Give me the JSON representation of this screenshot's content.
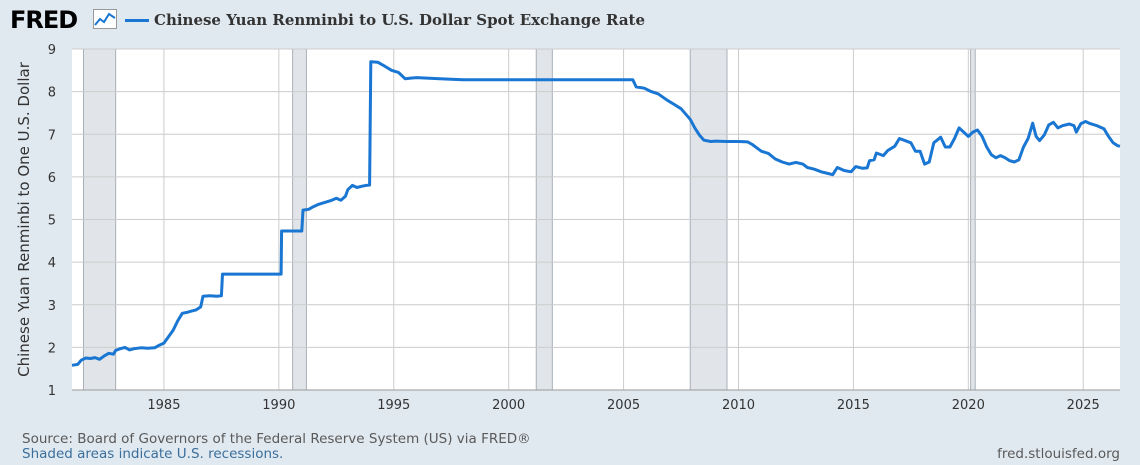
{
  "logo": {
    "text": "FRED",
    "icon": "line-chart-icon"
  },
  "colors": {
    "series": "#1976d2",
    "recession": "#e1e5e9",
    "plot_bg": "#ffffff",
    "page_bg": "#e1e9f0",
    "grid": "#cccccc"
  },
  "footer": {
    "source": "Source: Board of Governors of the Federal Reserve System (US) via FRED®",
    "note": "Shaded areas indicate U.S. recessions.",
    "url": "fred.stlouisfed.org"
  },
  "chart_data": {
    "type": "line",
    "title": "",
    "xlabel": "",
    "ylabel": "Chinese Yuan Renminbi to One U.S. Dollar",
    "xlim": [
      1981.0,
      2026.6
    ],
    "ylim": [
      1,
      9
    ],
    "x_ticks": [
      "1985",
      "1990",
      "1995",
      "2000",
      "2005",
      "2010",
      "2015",
      "2020",
      "2025"
    ],
    "y_ticks": [
      "1",
      "2",
      "3",
      "4",
      "5",
      "6",
      "7",
      "8",
      "9"
    ],
    "grid": true,
    "legend": "top-left",
    "recessions": [
      [
        1981.5,
        1982.9
      ],
      [
        1990.6,
        1991.2
      ],
      [
        2001.2,
        2001.9
      ],
      [
        2007.9,
        2009.5
      ],
      [
        2020.1,
        2020.3
      ]
    ],
    "series": [
      {
        "name": "Chinese Yuan Renminbi to U.S. Dollar Spot Exchange Rate",
        "points": [
          [
            1981.0,
            1.58
          ],
          [
            1981.25,
            1.6
          ],
          [
            1981.4,
            1.7
          ],
          [
            1981.6,
            1.75
          ],
          [
            1981.8,
            1.74
          ],
          [
            1982.0,
            1.76
          ],
          [
            1982.2,
            1.72
          ],
          [
            1982.4,
            1.8
          ],
          [
            1982.6,
            1.86
          ],
          [
            1982.8,
            1.84
          ],
          [
            1982.9,
            1.93
          ],
          [
            1983.1,
            1.97
          ],
          [
            1983.3,
            2.0
          ],
          [
            1983.5,
            1.94
          ],
          [
            1983.7,
            1.97
          ],
          [
            1984.0,
            1.99
          ],
          [
            1984.3,
            1.98
          ],
          [
            1984.6,
            1.99
          ],
          [
            1984.8,
            2.05
          ],
          [
            1985.0,
            2.1
          ],
          [
            1985.2,
            2.25
          ],
          [
            1985.4,
            2.4
          ],
          [
            1985.6,
            2.62
          ],
          [
            1985.8,
            2.8
          ],
          [
            1986.0,
            2.82
          ],
          [
            1986.2,
            2.85
          ],
          [
            1986.4,
            2.88
          ],
          [
            1986.6,
            2.95
          ],
          [
            1986.7,
            3.2
          ],
          [
            1987.0,
            3.21
          ],
          [
            1987.3,
            3.2
          ],
          [
            1987.5,
            3.21
          ],
          [
            1987.55,
            3.72
          ],
          [
            1987.8,
            3.72
          ],
          [
            1988.5,
            3.72
          ],
          [
            1989.5,
            3.72
          ],
          [
            1990.0,
            3.72
          ],
          [
            1990.1,
            3.72
          ],
          [
            1990.12,
            4.73
          ],
          [
            1990.5,
            4.73
          ],
          [
            1990.9,
            4.73
          ],
          [
            1991.0,
            4.73
          ],
          [
            1991.05,
            5.22
          ],
          [
            1991.3,
            5.24
          ],
          [
            1991.5,
            5.3
          ],
          [
            1991.7,
            5.35
          ],
          [
            1992.0,
            5.4
          ],
          [
            1992.3,
            5.45
          ],
          [
            1992.5,
            5.5
          ],
          [
            1992.7,
            5.45
          ],
          [
            1992.9,
            5.55
          ],
          [
            1993.0,
            5.7
          ],
          [
            1993.2,
            5.8
          ],
          [
            1993.4,
            5.75
          ],
          [
            1993.6,
            5.78
          ],
          [
            1993.8,
            5.8
          ],
          [
            1993.95,
            5.81
          ],
          [
            1994.0,
            8.7
          ],
          [
            1994.3,
            8.69
          ],
          [
            1994.6,
            8.6
          ],
          [
            1994.9,
            8.5
          ],
          [
            1995.2,
            8.45
          ],
          [
            1995.5,
            8.3
          ],
          [
            1995.8,
            8.32
          ],
          [
            1996.0,
            8.33
          ],
          [
            1997.0,
            8.3
          ],
          [
            1998.0,
            8.28
          ],
          [
            1999.0,
            8.28
          ],
          [
            2000.0,
            8.28
          ],
          [
            2001.0,
            8.28
          ],
          [
            2002.0,
            8.28
          ],
          [
            2003.0,
            8.28
          ],
          [
            2004.0,
            8.28
          ],
          [
            2005.4,
            8.28
          ],
          [
            2005.55,
            8.11
          ],
          [
            2005.9,
            8.08
          ],
          [
            2006.2,
            8.0
          ],
          [
            2006.5,
            7.95
          ],
          [
            2006.9,
            7.8
          ],
          [
            2007.2,
            7.7
          ],
          [
            2007.5,
            7.6
          ],
          [
            2007.9,
            7.35
          ],
          [
            2008.1,
            7.15
          ],
          [
            2008.3,
            6.98
          ],
          [
            2008.5,
            6.86
          ],
          [
            2008.8,
            6.83
          ],
          [
            2009.0,
            6.84
          ],
          [
            2009.5,
            6.83
          ],
          [
            2010.0,
            6.83
          ],
          [
            2010.4,
            6.82
          ],
          [
            2010.6,
            6.76
          ],
          [
            2010.8,
            6.68
          ],
          [
            2011.0,
            6.6
          ],
          [
            2011.3,
            6.55
          ],
          [
            2011.6,
            6.42
          ],
          [
            2011.9,
            6.35
          ],
          [
            2012.2,
            6.3
          ],
          [
            2012.5,
            6.34
          ],
          [
            2012.8,
            6.3
          ],
          [
            2013.0,
            6.22
          ],
          [
            2013.3,
            6.18
          ],
          [
            2013.6,
            6.12
          ],
          [
            2013.9,
            6.08
          ],
          [
            2014.1,
            6.05
          ],
          [
            2014.3,
            6.22
          ],
          [
            2014.6,
            6.15
          ],
          [
            2014.9,
            6.12
          ],
          [
            2015.1,
            6.24
          ],
          [
            2015.4,
            6.2
          ],
          [
            2015.6,
            6.21
          ],
          [
            2015.7,
            6.38
          ],
          [
            2015.9,
            6.4
          ],
          [
            2016.0,
            6.56
          ],
          [
            2016.3,
            6.5
          ],
          [
            2016.5,
            6.62
          ],
          [
            2016.8,
            6.72
          ],
          [
            2017.0,
            6.9
          ],
          [
            2017.2,
            6.86
          ],
          [
            2017.5,
            6.8
          ],
          [
            2017.7,
            6.6
          ],
          [
            2017.9,
            6.6
          ],
          [
            2018.1,
            6.3
          ],
          [
            2018.3,
            6.35
          ],
          [
            2018.5,
            6.8
          ],
          [
            2018.8,
            6.93
          ],
          [
            2019.0,
            6.7
          ],
          [
            2019.2,
            6.7
          ],
          [
            2019.4,
            6.9
          ],
          [
            2019.6,
            7.15
          ],
          [
            2019.8,
            7.05
          ],
          [
            2020.0,
            6.95
          ],
          [
            2020.2,
            7.05
          ],
          [
            2020.4,
            7.1
          ],
          [
            2020.6,
            6.95
          ],
          [
            2020.8,
            6.7
          ],
          [
            2021.0,
            6.52
          ],
          [
            2021.2,
            6.45
          ],
          [
            2021.4,
            6.5
          ],
          [
            2021.6,
            6.45
          ],
          [
            2021.8,
            6.38
          ],
          [
            2022.0,
            6.35
          ],
          [
            2022.2,
            6.4
          ],
          [
            2022.4,
            6.7
          ],
          [
            2022.6,
            6.9
          ],
          [
            2022.8,
            7.26
          ],
          [
            2022.95,
            6.95
          ],
          [
            2023.1,
            6.85
          ],
          [
            2023.3,
            6.98
          ],
          [
            2023.5,
            7.22
          ],
          [
            2023.7,
            7.28
          ],
          [
            2023.9,
            7.15
          ],
          [
            2024.1,
            7.2
          ],
          [
            2024.4,
            7.24
          ],
          [
            2024.6,
            7.2
          ],
          [
            2024.7,
            7.05
          ],
          [
            2024.9,
            7.25
          ],
          [
            2025.1,
            7.3
          ],
          [
            2025.3,
            7.25
          ],
          [
            2025.6,
            7.2
          ],
          [
            2025.9,
            7.13
          ],
          [
            2026.1,
            6.95
          ],
          [
            2026.3,
            6.8
          ],
          [
            2026.5,
            6.73
          ],
          [
            2026.6,
            6.72
          ]
        ]
      }
    ]
  }
}
